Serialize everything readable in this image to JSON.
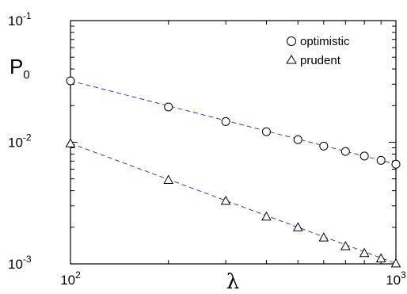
{
  "chart_data": {
    "type": "scatter",
    "xscale": "log",
    "yscale": "log",
    "xlim": [
      100,
      1000
    ],
    "ylim": [
      0.001,
      0.1
    ],
    "xlabel": "λ",
    "ylabel": {
      "main": "P",
      "subscript": "0"
    },
    "x_ticks": [
      {
        "base": "10",
        "exp": "2"
      },
      {
        "base": "10",
        "exp": "3"
      }
    ],
    "y_ticks": [
      {
        "base": "10",
        "exp": "-3"
      },
      {
        "base": "10",
        "exp": "-2"
      },
      {
        "base": "10",
        "exp": "-1"
      }
    ],
    "legend_position": "top-right",
    "grid": false,
    "series": [
      {
        "name": "optimistic",
        "marker": "circle",
        "x": [
          100,
          200,
          300,
          400,
          500,
          600,
          700,
          800,
          900,
          1000
        ],
        "y": [
          0.032,
          0.0195,
          0.0148,
          0.0122,
          0.0105,
          0.0093,
          0.0084,
          0.0077,
          0.0071,
          0.0066
        ],
        "fit_line_color": "#2244cc"
      },
      {
        "name": "prudent",
        "marker": "triangle",
        "x": [
          100,
          200,
          300,
          400,
          500,
          600,
          700,
          800,
          900,
          1000
        ],
        "y": [
          0.0098,
          0.0049,
          0.0033,
          0.00245,
          0.002,
          0.00165,
          0.0014,
          0.00123,
          0.00111,
          0.00101
        ],
        "fit_line_color": "#2244cc"
      }
    ]
  }
}
